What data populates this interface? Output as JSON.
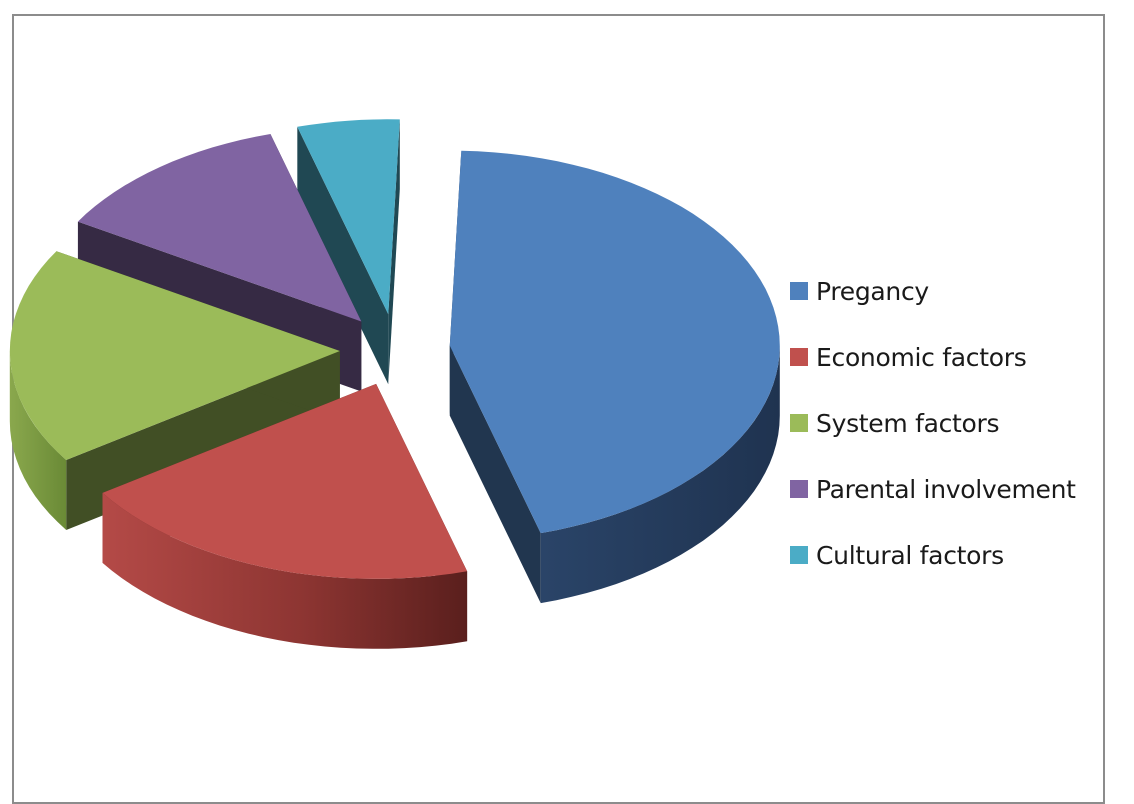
{
  "chart_data": {
    "type": "pie",
    "title": "",
    "categories": [
      "Pregancy",
      "Economic factors",
      "System factors",
      "Parental involvement",
      "Cultural factors"
    ],
    "values": [
      45,
      20,
      18,
      12,
      5
    ],
    "value_unit": "percent (estimated)",
    "exploded": true,
    "three_d": true,
    "legend_position": "right",
    "colors": [
      "#4f81bd",
      "#c0504d",
      "#9bbb59",
      "#8064a2",
      "#4bacc6"
    ]
  },
  "legend": {
    "items": [
      {
        "label": "Pregancy",
        "color": "#4f81bd"
      },
      {
        "label": "Economic factors",
        "color": "#c0504d"
      },
      {
        "label": "System factors",
        "color": "#9bbb59"
      },
      {
        "label": "Parental involvement",
        "color": "#8064a2"
      },
      {
        "label": "Cultural factors",
        "color": "#4bacc6"
      }
    ]
  }
}
